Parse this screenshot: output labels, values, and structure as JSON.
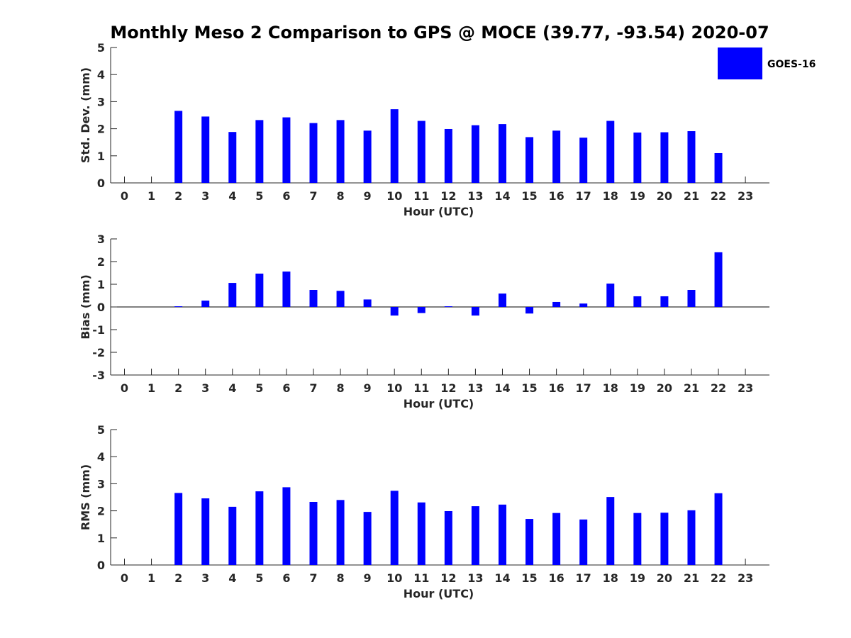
{
  "title": "Monthly Meso 2 Comparison to GPS @ MOCE (39.77, -93.54) 2020-07",
  "legend": {
    "label": "GOES-16"
  },
  "colors": {
    "bar": "#0000ff",
    "axis": "#262626"
  },
  "chart_data": [
    {
      "type": "bar",
      "xlabel": "Hour (UTC)",
      "ylabel": "Std. Dev. (mm)",
      "ylim": [
        0,
        5
      ],
      "yticks": [
        0,
        1,
        2,
        3,
        4,
        5
      ],
      "categories": [
        "0",
        "1",
        "2",
        "3",
        "4",
        "5",
        "6",
        "7",
        "8",
        "9",
        "10",
        "11",
        "12",
        "13",
        "14",
        "15",
        "16",
        "17",
        "18",
        "19",
        "20",
        "21",
        "22",
        "23"
      ],
      "series": [
        {
          "name": "GOES-16",
          "values": [
            null,
            null,
            2.66,
            2.45,
            1.88,
            2.32,
            2.42,
            2.21,
            2.32,
            1.93,
            2.72,
            2.29,
            1.99,
            2.13,
            2.17,
            1.69,
            1.93,
            1.67,
            2.29,
            1.86,
            1.87,
            1.91,
            1.1,
            null
          ]
        }
      ]
    },
    {
      "type": "bar",
      "xlabel": "Hour (UTC)",
      "ylabel": "Bias (mm)",
      "ylim": [
        -3,
        3
      ],
      "yticks": [
        -3,
        -2,
        -1,
        0,
        1,
        2,
        3
      ],
      "categories": [
        "0",
        "1",
        "2",
        "3",
        "4",
        "5",
        "6",
        "7",
        "8",
        "9",
        "10",
        "11",
        "12",
        "13",
        "14",
        "15",
        "16",
        "17",
        "18",
        "19",
        "20",
        "21",
        "22",
        "23"
      ],
      "series": [
        {
          "name": "GOES-16",
          "values": [
            null,
            null,
            0.03,
            0.28,
            1.06,
            1.47,
            1.56,
            0.75,
            0.71,
            0.33,
            -0.38,
            -0.27,
            0.03,
            -0.38,
            0.59,
            -0.29,
            0.22,
            0.15,
            1.03,
            0.47,
            0.47,
            0.75,
            2.41,
            null
          ]
        }
      ]
    },
    {
      "type": "bar",
      "xlabel": "Hour (UTC)",
      "ylabel": "RMS (mm)",
      "ylim": [
        0,
        5
      ],
      "yticks": [
        0,
        1,
        2,
        3,
        4,
        5
      ],
      "categories": [
        "0",
        "1",
        "2",
        "3",
        "4",
        "5",
        "6",
        "7",
        "8",
        "9",
        "10",
        "11",
        "12",
        "13",
        "14",
        "15",
        "16",
        "17",
        "18",
        "19",
        "20",
        "21",
        "22",
        "23"
      ],
      "series": [
        {
          "name": "GOES-16",
          "values": [
            null,
            null,
            2.66,
            2.46,
            2.15,
            2.72,
            2.87,
            2.33,
            2.4,
            1.96,
            2.74,
            2.31,
            1.99,
            2.17,
            2.23,
            1.7,
            1.92,
            1.68,
            2.51,
            1.92,
            1.93,
            2.02,
            2.65,
            null
          ]
        }
      ]
    }
  ]
}
